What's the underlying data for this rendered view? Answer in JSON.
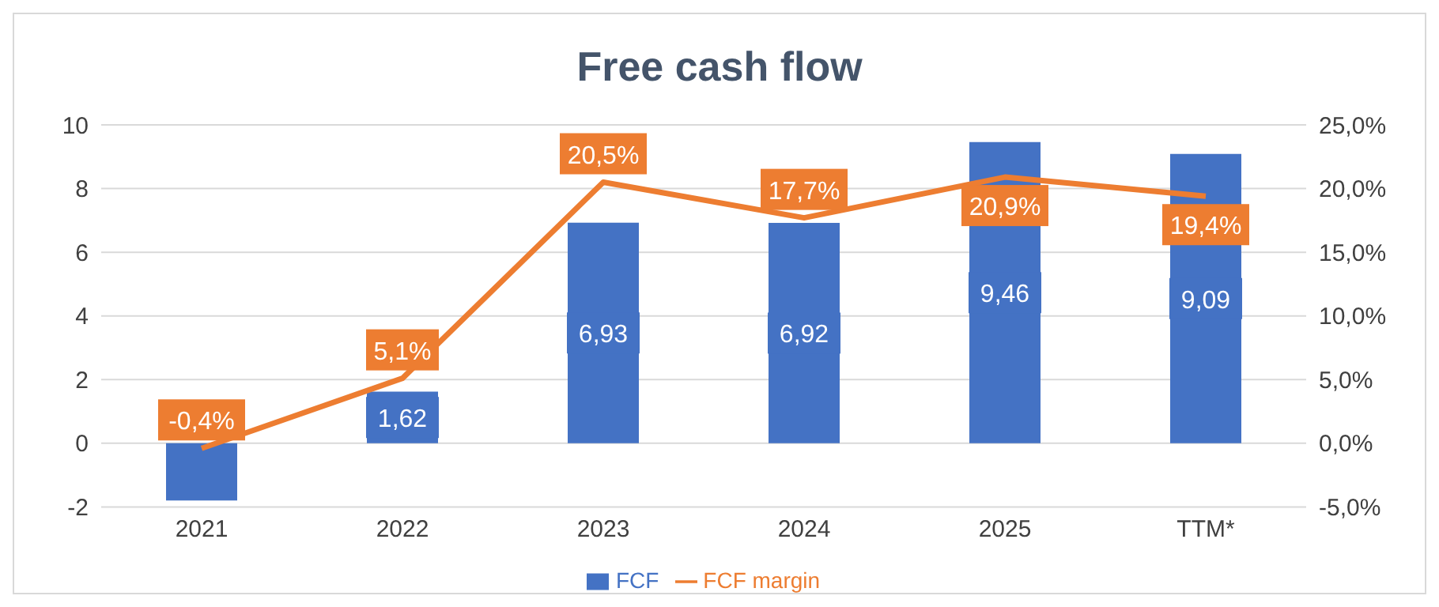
{
  "chart_data": {
    "type": "bar",
    "title": "Free cash flow",
    "categories": [
      "2021",
      "2022",
      "2023",
      "2024",
      "2025",
      "TTM*"
    ],
    "series": [
      {
        "name": "FCF",
        "color": "#4472c4",
        "values": [
          -1.8,
          1.62,
          6.93,
          6.92,
          9.46,
          9.09
        ],
        "value_labels": [
          null,
          "1,62",
          "6,93",
          "6,92",
          "9,46",
          "9,09"
        ]
      },
      {
        "name": "FCF margin",
        "type": "line",
        "axis": "y2",
        "color": "#ed7d31",
        "values": [
          -0.4,
          5.1,
          20.5,
          17.7,
          20.9,
          19.4
        ],
        "value_labels": [
          "-0,4%",
          "5,1%",
          "20,5%",
          "17,7%",
          "20,9%",
          "19,4%"
        ]
      }
    ],
    "ylim": [
      -2,
      10
    ],
    "yticks": [
      -2,
      0,
      2,
      4,
      6,
      8,
      10
    ],
    "y2lim": [
      -5,
      25
    ],
    "y2ticks": [
      {
        "value": -5,
        "label": "-5,0%"
      },
      {
        "value": 0,
        "label": "0,0%"
      },
      {
        "value": 5,
        "label": "5,0%"
      },
      {
        "value": 10,
        "label": "10,0%"
      },
      {
        "value": 15,
        "label": "15,0%"
      },
      {
        "value": 20,
        "label": "20,0%"
      },
      {
        "value": 25,
        "label": "25,0%"
      }
    ],
    "grid": "y",
    "legend": "bottom",
    "marker": "none",
    "line_style": "solid"
  }
}
